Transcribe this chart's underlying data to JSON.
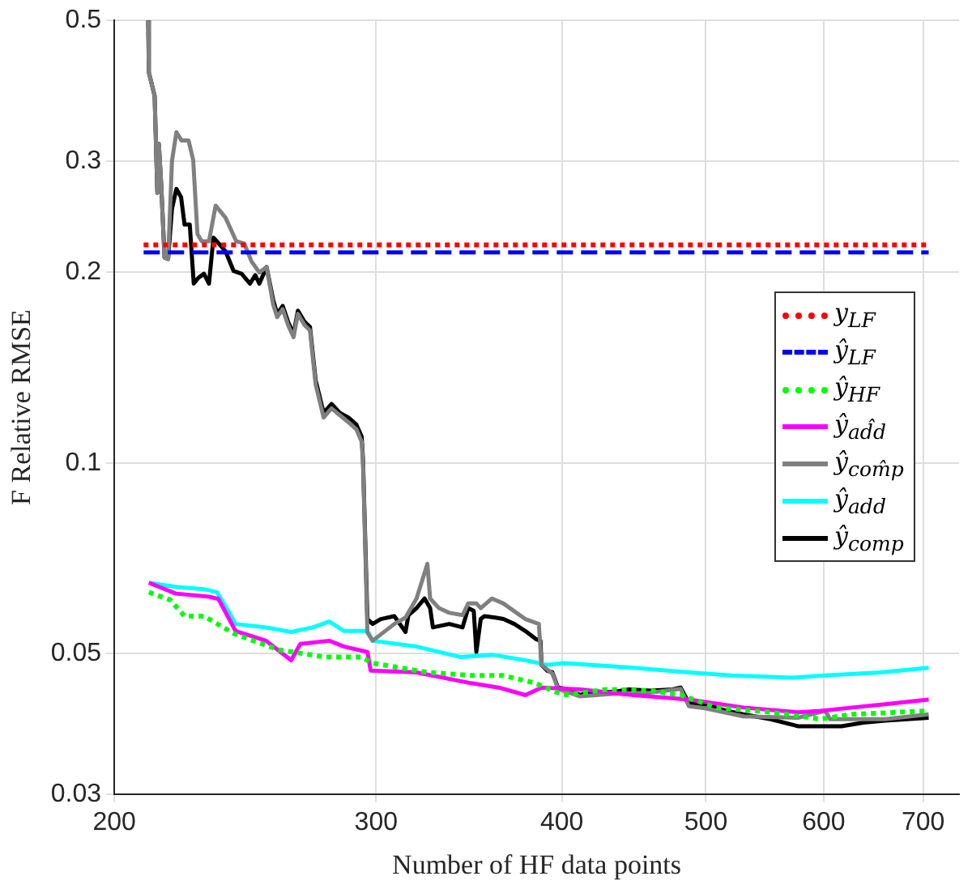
{
  "chart_data": {
    "type": "line",
    "xlabel": "Number of HF data points",
    "ylabel": "F Relative RMSE",
    "log": "xy",
    "grid": true,
    "legend": "right",
    "marker": "none",
    "xlim": [
      200,
      740
    ],
    "xticks": [
      200,
      300,
      400,
      500,
      600,
      700
    ],
    "ylim": [
      0.03,
      0.5
    ],
    "yticks": [
      0.03,
      0.05,
      0.1,
      0.2,
      0.3,
      0.5
    ],
    "series": [
      {
        "name": "y$_{LF}$",
        "color": "#ff0000",
        "line_style": "dotted",
        "x": [
          209.3,
          706
        ],
        "values": [
          0.221,
          0.221
        ]
      },
      {
        "name": "ŷ$_{LF}$",
        "color": "#0000ff",
        "line_style": "dashed",
        "x": [
          209.3,
          706
        ],
        "values": [
          0.215,
          0.215
        ]
      },
      {
        "name": "ŷ$_{HF}$",
        "color": "#00ff00",
        "line_style": "dotted",
        "x": [
          211,
          218,
          223,
          229.8,
          241,
          258,
          277,
          293,
          298.4,
          324.8,
          347.6,
          365,
          384,
          401,
          429,
          459,
          481,
          508,
          553,
          597,
          627,
          706
        ],
        "values": [
          0.0625,
          0.0608,
          0.0573,
          0.0573,
          0.0537,
          0.0507,
          0.0494,
          0.0494,
          0.0483,
          0.0467,
          0.0462,
          0.0462,
          0.0449,
          0.043,
          0.0439,
          0.0437,
          0.043,
          0.0411,
          0.0404,
          0.0394,
          0.0401,
          0.0406
        ]
      },
      {
        "name": "ŷ$_{ad̂d}$",
        "color": "#ff00ff",
        "line_style": "solid",
        "x": [
          211,
          220,
          231.6,
          235,
          241.3,
          253,
          263,
          266.8,
          279,
          285.5,
          296,
          297.5,
          319.4,
          347.6,
          362.7,
          378,
          387.6,
          411.4,
          447,
          487,
          530,
          577,
          597,
          627,
          660,
          706
        ],
        "values": [
          0.0647,
          0.0622,
          0.0615,
          0.061,
          0.0543,
          0.0524,
          0.0488,
          0.0518,
          0.0524,
          0.0513,
          0.0503,
          0.047,
          0.0467,
          0.0449,
          0.0442,
          0.043,
          0.0442,
          0.0439,
          0.043,
          0.0423,
          0.0411,
          0.0404,
          0.0406,
          0.0411,
          0.0416,
          0.0423
        ]
      },
      {
        "name": "ŷ$_{com̂p}$",
        "color": "#808080",
        "line_style": "solid",
        "x": [
          210.8,
          211,
          212.9,
          213.8,
          214.3,
          215.1,
          216.2,
          217.4,
          218.7,
          220.2,
          222,
          224.4,
          226,
          227.5,
          229,
          231.6,
          234,
          237.6,
          241.6,
          244.6,
          247.4,
          250.4,
          253.2,
          255.8,
          257.4,
          259.6,
          261.8,
          264,
          265.8,
          268.6,
          270.8,
          273.2,
          276.6,
          280,
          283.6,
          287.4,
          291,
          293.4,
          294,
          296,
          298.4,
          308.6,
          314,
          319.4,
          324.8,
          326.2,
          330.7,
          336,
          343,
          346,
          350.4,
          352.8,
          359,
          365.4,
          378,
          386,
          387.6,
          394.2,
          397.6,
          411.4,
          432.8,
          459,
          480.8,
          487,
          499.4,
          529.8,
          576.6,
          601.6,
          606,
          627,
          660.2,
          706
        ],
        "values": [
          0.5,
          0.414,
          0.38,
          0.267,
          0.319,
          0.274,
          0.211,
          0.21,
          0.3,
          0.333,
          0.323,
          0.323,
          0.301,
          0.23,
          0.224,
          0.224,
          0.255,
          0.244,
          0.224,
          0.222,
          0.208,
          0.2,
          0.204,
          0.178,
          0.17,
          0.175,
          0.165,
          0.158,
          0.172,
          0.165,
          0.162,
          0.133,
          0.118,
          0.122,
          0.119,
          0.116,
          0.113,
          0.108,
          0.1,
          0.054,
          0.0524,
          0.0557,
          0.057,
          0.0611,
          0.0693,
          0.0611,
          0.059,
          0.058,
          0.0575,
          0.06,
          0.06,
          0.059,
          0.0611,
          0.06,
          0.0567,
          0.0557,
          0.048,
          0.0465,
          0.044,
          0.0428,
          0.0432,
          0.0434,
          0.044,
          0.0413,
          0.041,
          0.0398,
          0.0396,
          0.0406,
          0.0394,
          0.0394,
          0.0394,
          0.0401
        ]
      },
      {
        "name": "ŷ$_{add}$",
        "color": "#00ffff",
        "line_style": "solid",
        "x": [
          211,
          220.2,
          229.8,
          234.5,
          238.6,
          241.3,
          253,
          263,
          272,
          279,
          285.5,
          296,
          298.4,
          319.4,
          341.6,
          359,
          378,
          391,
          401,
          447,
          487,
          520,
          572,
          601,
          655,
          706
        ],
        "values": [
          0.0647,
          0.0637,
          0.0632,
          0.0625,
          0.0584,
          0.0557,
          0.055,
          0.0541,
          0.055,
          0.0562,
          0.0543,
          0.0543,
          0.0524,
          0.0513,
          0.0494,
          0.0498,
          0.0488,
          0.048,
          0.0483,
          0.0475,
          0.0467,
          0.0462,
          0.0458,
          0.0462,
          0.0467,
          0.0475
        ]
      },
      {
        "name": "ŷ$_{comp}$",
        "color": "#000000",
        "line_style": "solid",
        "x": [
          210.8,
          211,
          212.9,
          213.8,
          214.3,
          215.1,
          216.2,
          217.4,
          218.7,
          220.2,
          221.8,
          223,
          224.8,
          226.2,
          227.8,
          229.8,
          231.6,
          233.2,
          235.2,
          237.6,
          240.6,
          243.6,
          246.8,
          248.8,
          250.4,
          253.2,
          255.8,
          257.4,
          259.6,
          261.8,
          264,
          265.8,
          268.6,
          270.8,
          273.2,
          276.6,
          280,
          283.6,
          287.4,
          291,
          293.4,
          294,
          296,
          298.4,
          302.2,
          308.6,
          314,
          315.4,
          319.4,
          323.4,
          326.2,
          327.6,
          336,
          343,
          346,
          349,
          350.4,
          352.8,
          354.8,
          360.8,
          365.4,
          371.6,
          378,
          384.4,
          387,
          387.6,
          391,
          394.2,
          397.6,
          404.4,
          411.4,
          418.4,
          432.8,
          443.8,
          459,
          474.8,
          480.8,
          487,
          499.4,
          516.6,
          529.8,
          552.6,
          576.6,
          596.6,
          616.8,
          638,
          660.2,
          683,
          706
        ],
        "values": [
          0.5,
          0.414,
          0.38,
          0.267,
          0.319,
          0.274,
          0.211,
          0.21,
          0.252,
          0.271,
          0.263,
          0.238,
          0.238,
          0.192,
          0.196,
          0.199,
          0.192,
          0.227,
          0.222,
          0.216,
          0.201,
          0.199,
          0.192,
          0.198,
          0.192,
          0.204,
          0.181,
          0.172,
          0.177,
          0.167,
          0.16,
          0.174,
          0.167,
          0.164,
          0.135,
          0.12,
          0.124,
          0.12,
          0.118,
          0.115,
          0.11,
          0.101,
          0.0567,
          0.0557,
          0.0567,
          0.0573,
          0.0541,
          0.0575,
          0.059,
          0.0611,
          0.059,
          0.055,
          0.0557,
          0.055,
          0.059,
          0.0584,
          0.0503,
          0.0567,
          0.0573,
          0.057,
          0.0567,
          0.0557,
          0.0543,
          0.0527,
          0.0524,
          0.048,
          0.047,
          0.0467,
          0.0442,
          0.0439,
          0.043,
          0.0435,
          0.0435,
          0.0439,
          0.0437,
          0.0439,
          0.0442,
          0.0418,
          0.0416,
          0.0406,
          0.0401,
          0.0394,
          0.0384,
          0.0384,
          0.0384,
          0.0389,
          0.0392,
          0.0394,
          0.0396
        ]
      }
    ]
  }
}
